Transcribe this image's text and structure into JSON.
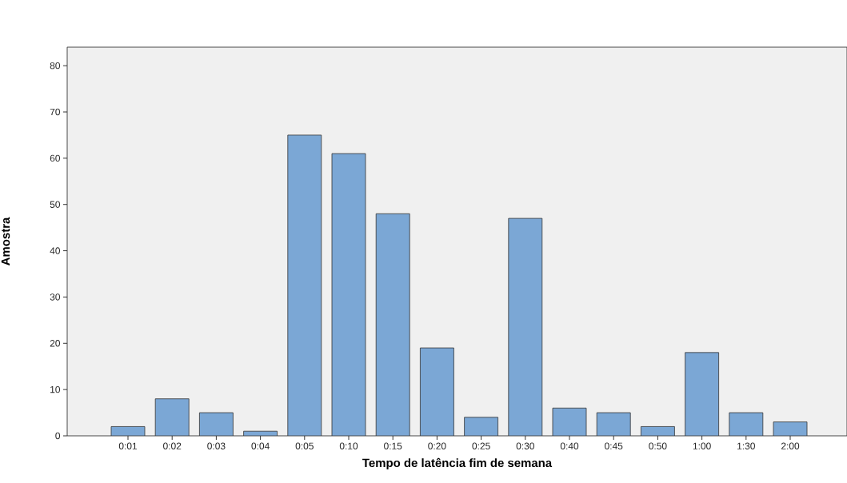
{
  "chart_data": {
    "type": "bar",
    "xlabel": "Tempo de latência fim de semana",
    "ylabel": "Amostra",
    "categories": [
      "0:01",
      "0:02",
      "0:03",
      "0:04",
      "0:05",
      "0:10",
      "0:15",
      "0:20",
      "0:25",
      "0:30",
      "0:40",
      "0:45",
      "0:50",
      "1:00",
      "1:30",
      "2:00"
    ],
    "values": [
      2,
      8,
      5,
      1,
      65,
      61,
      48,
      19,
      4,
      47,
      6,
      5,
      2,
      18,
      5,
      3
    ],
    "color": "#7ba7d5",
    "ylim": [
      0,
      84
    ],
    "yticks": [
      0,
      10,
      20,
      30,
      40,
      50,
      60,
      70,
      80
    ]
  }
}
